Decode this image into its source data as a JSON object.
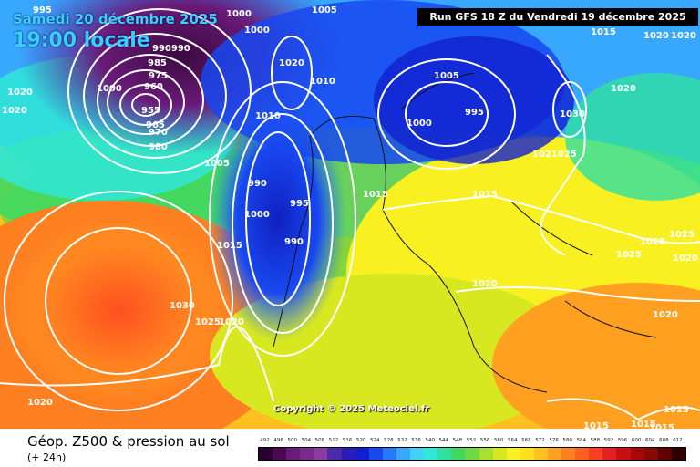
{
  "header": {
    "date": "Samedi 20 décembre 2025",
    "time": "19:00 locale",
    "run": "Run GFS 18 Z du Vendredi 19 décembre 2025"
  },
  "copyright": "Copyright © 2025 Meteociel.fr",
  "footer": {
    "title": "Géop. Z500 & pression au sol",
    "lead": "(+ 24h)"
  },
  "scale": {
    "labels": [
      "492",
      "496",
      "500",
      "504",
      "508",
      "512",
      "516",
      "520",
      "524",
      "528",
      "532",
      "536",
      "540",
      "544",
      "548",
      "552",
      "556",
      "560",
      "564",
      "568",
      "572",
      "576",
      "580",
      "584",
      "588",
      "592",
      "596",
      "600",
      "604",
      "608",
      "612"
    ],
    "colors": [
      "#2a0030",
      "#4a0a52",
      "#6a1a78",
      "#7a2a8a",
      "#8a3aa0",
      "#4a2aa8",
      "#2a1ab8",
      "#1020d0",
      "#1848f0",
      "#2878ff",
      "#38a8ff",
      "#40d0f8",
      "#30e8d8",
      "#30e0a0",
      "#40d860",
      "#70d840",
      "#a8e030",
      "#d8e820",
      "#f8f020",
      "#ffe020",
      "#ffc020",
      "#ffa020",
      "#ff8020",
      "#ff6020",
      "#f84020",
      "#e82020",
      "#c81010",
      "#a80808",
      "#880808",
      "#600000",
      "#300000"
    ]
  },
  "isobar_labels": [
    {
      "text": "995"
    },
    {
      "text": "1000"
    },
    {
      "text": "1000"
    },
    {
      "text": "1005"
    },
    {
      "text": "990990"
    },
    {
      "text": "985"
    },
    {
      "text": "975"
    },
    {
      "text": "960"
    },
    {
      "text": "955"
    },
    {
      "text": "965"
    },
    {
      "text": "970"
    },
    {
      "text": "980"
    },
    {
      "text": "1000"
    },
    {
      "text": "1020"
    },
    {
      "text": "1020"
    },
    {
      "text": "1010"
    },
    {
      "text": "1020"
    },
    {
      "text": "1005"
    },
    {
      "text": "1010"
    },
    {
      "text": "1005"
    },
    {
      "text": "995"
    },
    {
      "text": "1000"
    },
    {
      "text": "1015"
    },
    {
      "text": "1020"
    },
    {
      "text": "1020"
    },
    {
      "text": "1030"
    },
    {
      "text": "1021025"
    },
    {
      "text": "990"
    },
    {
      "text": "995"
    },
    {
      "text": "1000"
    },
    {
      "text": "990"
    },
    {
      "text": "1015"
    },
    {
      "text": "1015"
    },
    {
      "text": "1015"
    },
    {
      "text": "1020"
    },
    {
      "text": "1025"
    },
    {
      "text": "1025"
    },
    {
      "text": "1025"
    },
    {
      "text": "1020"
    },
    {
      "text": "1030"
    },
    {
      "text": "1025"
    },
    {
      "text": "1020"
    },
    {
      "text": "1020"
    },
    {
      "text": "1015"
    },
    {
      "text": "1015"
    },
    {
      "text": "1015"
    },
    {
      "text": "1015"
    },
    {
      "text": "1020"
    },
    {
      "text": "1020"
    }
  ]
}
